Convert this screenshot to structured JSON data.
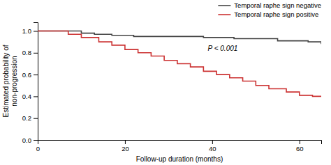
{
  "chart_data": {
    "type": "step",
    "xlabel": "Follow-up duration (months)",
    "ylabel": "Estimated probability of\nnon-progression",
    "annotation": "P < 0.001",
    "series": [
      {
        "name": "Temporal raphe sign negative",
        "color": "#444444",
        "x": [
          0,
          8,
          10,
          13,
          17,
          22,
          30,
          38,
          45,
          55,
          62,
          65
        ],
        "values": [
          1.0,
          1.0,
          0.98,
          0.97,
          0.96,
          0.95,
          0.95,
          0.94,
          0.93,
          0.91,
          0.9,
          0.88
        ]
      },
      {
        "name": "Temporal raphe sign positive",
        "color": "#cc3333",
        "x": [
          0,
          7,
          10,
          14,
          17,
          20,
          23,
          26,
          29,
          32,
          35,
          38,
          41,
          44,
          47,
          50,
          53,
          57,
          60,
          63,
          65
        ],
        "values": [
          1.0,
          0.97,
          0.94,
          0.9,
          0.87,
          0.83,
          0.8,
          0.77,
          0.73,
          0.7,
          0.67,
          0.63,
          0.6,
          0.57,
          0.54,
          0.5,
          0.47,
          0.44,
          0.41,
          0.4,
          0.4
        ]
      }
    ],
    "xlim": [
      0,
      65
    ],
    "ylim": [
      0.0,
      1.08
    ],
    "xticks": [
      0,
      20,
      40,
      60
    ],
    "yticks": [
      {
        "value": 0.0,
        "label": "0.0"
      },
      0.2,
      0.4,
      0.6,
      0.8,
      {
        "value": 1.0,
        "label": "1.0"
      }
    ],
    "grid": false,
    "legend": "upper right"
  }
}
